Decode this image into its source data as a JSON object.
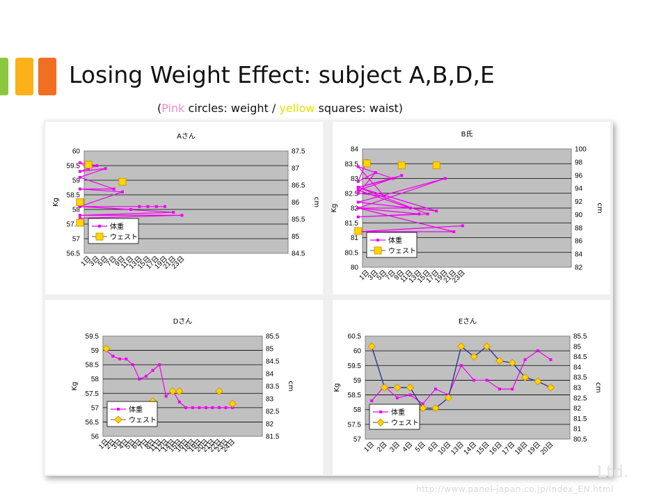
{
  "slide": {
    "title": "Losing Weight Effect: subject A,B,D,E",
    "subtitle": {
      "open": "(",
      "pink": "Pink",
      "part1": " circles: weight / ",
      "yellow": "yellow",
      "part2": " squares: waist)"
    },
    "footer_url": "http://www.panel-japan.co.jp/index_EN.html",
    "footer_mark": "Ltd."
  },
  "colors": {
    "weight": "#ee00ee",
    "waist_fill": "#ffd700",
    "waist_stroke": "#d99400",
    "line_E_waist": "#333399",
    "plot_bg": "#c0c0c0",
    "panel_bg": "#ffffff"
  },
  "chart_data": [
    {
      "type": "line",
      "title": "Aさん",
      "ylabel": "Kg",
      "y2label": "cm",
      "ylim": [
        56.5,
        60
      ],
      "yticks": [
        "56.5",
        "57",
        "57.5",
        "58",
        "58.5",
        "59",
        "59.5",
        "60"
      ],
      "y2lim": [
        84.5,
        87.5
      ],
      "y2ticks": [
        "84.5",
        "85",
        "85.5",
        "86",
        "86.5",
        "87",
        "87.5"
      ],
      "x_count": 24,
      "xtick_labels": [
        "1日",
        "3日",
        "5日",
        "7日",
        "9日",
        "11日",
        "13日",
        "15日",
        "17日",
        "19日",
        "21日",
        "23日"
      ],
      "xtick_index": [
        1,
        3,
        5,
        7,
        9,
        11,
        13,
        15,
        17,
        19,
        21,
        23
      ],
      "legend": {
        "weight": "体重",
        "waist": "ウェスト"
      },
      "waist_marker": "square",
      "waist_line": false,
      "series": [
        {
          "name": "体重",
          "axis": "left",
          "x": [
            1,
            2,
            3,
            4,
            5,
            6,
            7,
            8,
            9,
            10,
            11,
            12,
            13,
            14,
            15,
            16,
            17,
            18,
            19,
            20,
            21,
            22,
            23,
            24
          ],
          "values": [
            59.4,
            59.6,
            59.5,
            59.3,
            59.4,
            59.1,
            58.7,
            58.7,
            58.6,
            58.1,
            58.0,
            58.1,
            58.1,
            58.1,
            58.1,
            58.1,
            58.1,
            58.1,
            58.1,
            58.1,
            57.9,
            57.8,
            57.8,
            57.7
          ]
        },
        {
          "name": "ウェスト",
          "axis": "right",
          "x": [
            1,
            9,
            16,
            24
          ],
          "values": [
            87.1,
            86.6,
            86.0,
            85.4
          ]
        }
      ]
    },
    {
      "type": "line",
      "title": "B氏",
      "ylabel": "Kg",
      "y2label": "cm",
      "ylim": [
        80,
        84
      ],
      "yticks": [
        "80",
        "80.5",
        "81",
        "81.5",
        "82",
        "82.5",
        "83",
        "83.5",
        "84"
      ],
      "y2lim": [
        82,
        100
      ],
      "y2ticks": [
        "82",
        "84",
        "86",
        "88",
        "90",
        "92",
        "94",
        "96",
        "98",
        "100"
      ],
      "x_count": 24,
      "xtick_labels": [
        "1日",
        "3日",
        "5日",
        "7日",
        "9日",
        "11日",
        "13日",
        "15日",
        "17日",
        "19日",
        "21日",
        "23日"
      ],
      "xtick_index": [
        1,
        3,
        5,
        7,
        9,
        11,
        13,
        15,
        17,
        19,
        21,
        23
      ],
      "legend": {
        "weight": "体重",
        "waist": "ウェスト"
      },
      "waist_marker": "square",
      "waist_line": false,
      "series": [
        {
          "name": "体重",
          "axis": "left",
          "x": [
            1,
            2,
            3,
            4,
            5,
            6,
            7,
            8,
            9,
            10,
            11,
            12,
            13,
            14,
            15,
            16,
            17,
            18,
            19,
            20,
            21,
            22,
            23,
            24
          ],
          "values": [
            83.6,
            82.9,
            83.2,
            82.5,
            82.4,
            83.4,
            83.0,
            82.7,
            83.1,
            82.6,
            82.0,
            82.0,
            81.8,
            81.7,
            81.8,
            82.7,
            81.9,
            82.2,
            83.0,
            82.0,
            81.2,
            81.2,
            81.4,
            81.2
          ]
        },
        {
          "name": "ウェスト",
          "axis": "right",
          "x": [
            1,
            9,
            17,
            24
          ],
          "values": [
            97.8,
            97.5,
            97.5,
            87.5
          ]
        }
      ]
    },
    {
      "type": "line",
      "title": "Dさん",
      "ylabel": "Kg",
      "y2label": "cm",
      "ylim": [
        56,
        59.5
      ],
      "yticks": [
        "56",
        "56.5",
        "57",
        "57.5",
        "58",
        "58.5",
        "59",
        "59.5"
      ],
      "y2lim": [
        81.5,
        85.5
      ],
      "y2ticks": [
        "81.5",
        "82",
        "82.5",
        "83",
        "83.5",
        "84",
        "84.5",
        "85",
        "85.5"
      ],
      "x_count": 24,
      "xtick_labels": [
        "1日",
        "2日",
        "3日",
        "4日",
        "5日",
        "6日",
        "7日",
        "8日",
        "11日",
        "12日",
        "14日",
        "15日",
        "16日",
        "18日",
        "19日",
        "20日",
        "21日",
        "22日",
        "23日",
        "24日"
      ],
      "xtick_index": [
        1,
        2,
        3,
        4,
        5,
        6,
        7,
        8,
        11,
        12,
        14,
        15,
        16,
        18,
        19,
        20,
        21,
        22,
        23,
        24
      ],
      "legend": {
        "weight": "体重",
        "waist": "ウェスト"
      },
      "waist_marker": "diamond",
      "waist_line": false,
      "series": [
        {
          "name": "体重",
          "axis": "left",
          "x": [
            1,
            2,
            3,
            4,
            5,
            6,
            7,
            8,
            11,
            12,
            14,
            15,
            16,
            18,
            19,
            20,
            21,
            22,
            23,
            24
          ],
          "values": [
            59.0,
            58.8,
            58.7,
            58.7,
            58.5,
            58.0,
            58.1,
            58.3,
            58.5,
            57.4,
            57.6,
            57.2,
            57.0,
            57.0,
            57.0,
            57.0,
            57.0,
            57.0,
            57.0,
            57.0
          ]
        },
        {
          "name": "ウェスト",
          "axis": "right",
          "x": [
            1,
            8,
            14,
            15,
            22,
            24
          ],
          "values": [
            85.0,
            82.9,
            83.3,
            83.3,
            83.3,
            82.8
          ]
        }
      ]
    },
    {
      "type": "line",
      "title": "Eさん",
      "ylabel": "Kg",
      "y2label": "cm",
      "ylim": [
        57,
        60.5
      ],
      "yticks": [
        "57",
        "57.5",
        "58",
        "58.5",
        "59",
        "59.5",
        "60",
        "60.5"
      ],
      "y2lim": [
        80.5,
        85.5
      ],
      "y2ticks": [
        "80.5",
        "81",
        "81.5",
        "82",
        "82.5",
        "83",
        "83.5",
        "84",
        "84.5",
        "85",
        "85.5"
      ],
      "x_count": 16,
      "xtick_labels": [
        "1日",
        "2日",
        "3日",
        "4日",
        "5日",
        "6日",
        "10日",
        "13日",
        "14日",
        "15日",
        "16日",
        "17日",
        "18日",
        "19日",
        "20日"
      ],
      "xtick_index": [
        1,
        2,
        3,
        4,
        5,
        6,
        10,
        13,
        14,
        15,
        16,
        17,
        18,
        19,
        20
      ],
      "legend": {
        "weight": "体重",
        "waist": "ウェスト"
      },
      "waist_marker": "diamond",
      "waist_line": true,
      "series": [
        {
          "name": "体重",
          "axis": "left",
          "x": [
            1,
            2,
            3,
            4,
            5,
            6,
            10,
            13,
            14,
            15,
            16,
            17,
            18,
            19,
            20
          ],
          "values": [
            58.3,
            58.8,
            58.4,
            58.5,
            58.2,
            58.7,
            58.5,
            59.5,
            59.0,
            59.0,
            58.7,
            58.7,
            59.7,
            60.0,
            59.7
          ]
        },
        {
          "name": "ウェスト",
          "axis": "right",
          "x": [
            1,
            2,
            3,
            4,
            5,
            6,
            10,
            13,
            14,
            15,
            16,
            17,
            18,
            19,
            20
          ],
          "values": [
            85.0,
            83.0,
            83.0,
            83.0,
            82.0,
            82.0,
            82.5,
            85.0,
            84.5,
            85.0,
            84.3,
            84.2,
            83.5,
            83.3,
            83.0
          ]
        }
      ]
    }
  ]
}
